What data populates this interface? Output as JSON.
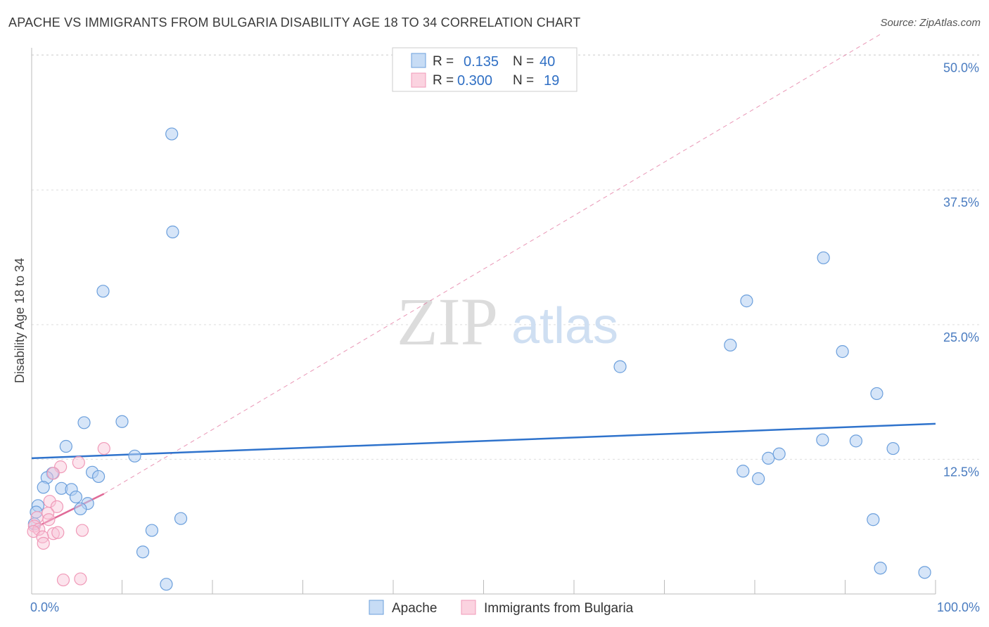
{
  "title": "APACHE VS IMMIGRANTS FROM BULGARIA DISABILITY AGE 18 TO 34 CORRELATION CHART",
  "source": "Source: ZipAtlas.com",
  "watermark": {
    "zip": "ZIP",
    "atlas": "atlas"
  },
  "colors": {
    "apache": "#6b9fdc",
    "bulgaria": "#f09ab8",
    "apache_line": "#2f73cc",
    "bulgaria_line": "#e06a97",
    "tick": "#4a7cc0"
  },
  "chart_data": {
    "type": "scatter",
    "title": "APACHE VS IMMIGRANTS FROM BULGARIA DISABILITY AGE 18 TO 34 CORRELATION CHART",
    "xlabel": "",
    "ylabel": "Disability Age 18 to 34",
    "xlim": [
      0,
      100
    ],
    "ylim": [
      0,
      52
    ],
    "y_ticks": [
      "12.5%",
      "25.0%",
      "37.5%",
      "50.0%"
    ],
    "y_tick_values": [
      12.5,
      25,
      37.5,
      50
    ],
    "x_tick_labels": [
      "0.0%",
      "100.0%"
    ],
    "x_tick_label_values": [
      0,
      100
    ],
    "grid": true,
    "legend_position": "top-center",
    "legend": [
      {
        "r_label": "R =",
        "r_value": "0.135",
        "n_label": "N =",
        "n_value": "40"
      },
      {
        "r_label": "R =",
        "r_value": "0.300",
        "n_label": "N =",
        "n_value": "19"
      }
    ],
    "series": [
      {
        "name": "Apache",
        "points": [
          [
            15.5,
            42.7
          ],
          [
            15.6,
            33.6
          ],
          [
            7.9,
            28.1
          ],
          [
            10.0,
            16.0
          ],
          [
            5.8,
            15.9
          ],
          [
            3.8,
            13.7
          ],
          [
            11.4,
            12.8
          ],
          [
            6.7,
            11.3
          ],
          [
            7.4,
            10.9
          ],
          [
            2.3,
            11.2
          ],
          [
            1.7,
            10.8
          ],
          [
            1.3,
            9.9
          ],
          [
            3.3,
            9.8
          ],
          [
            4.4,
            9.7
          ],
          [
            4.9,
            9.0
          ],
          [
            6.2,
            8.4
          ],
          [
            5.4,
            7.9
          ],
          [
            0.7,
            8.2
          ],
          [
            0.5,
            7.6
          ],
          [
            16.5,
            7.0
          ],
          [
            13.3,
            5.9
          ],
          [
            12.3,
            3.9
          ],
          [
            14.9,
            0.9
          ],
          [
            65.1,
            21.1
          ],
          [
            77.3,
            23.1
          ],
          [
            79.1,
            27.2
          ],
          [
            87.6,
            31.2
          ],
          [
            89.7,
            22.5
          ],
          [
            93.5,
            18.6
          ],
          [
            87.5,
            14.3
          ],
          [
            91.2,
            14.2
          ],
          [
            95.3,
            13.5
          ],
          [
            78.7,
            11.4
          ],
          [
            80.4,
            10.7
          ],
          [
            81.5,
            12.6
          ],
          [
            82.7,
            13.0
          ],
          [
            93.1,
            6.9
          ],
          [
            93.9,
            2.4
          ],
          [
            98.8,
            2.0
          ],
          [
            0.3,
            6.5
          ]
        ]
      },
      {
        "name": "Immigrants from Bulgaria",
        "points": [
          [
            8.0,
            13.5
          ],
          [
            5.2,
            12.2
          ],
          [
            3.2,
            11.8
          ],
          [
            2.4,
            11.2
          ],
          [
            2.0,
            8.6
          ],
          [
            2.8,
            8.1
          ],
          [
            1.8,
            7.5
          ],
          [
            0.6,
            7.1
          ],
          [
            1.9,
            6.9
          ],
          [
            0.3,
            6.3
          ],
          [
            0.8,
            6.0
          ],
          [
            0.2,
            5.8
          ],
          [
            2.4,
            5.6
          ],
          [
            5.6,
            5.9
          ],
          [
            2.9,
            5.7
          ],
          [
            1.2,
            5.3
          ],
          [
            1.3,
            4.7
          ],
          [
            3.5,
            1.3
          ],
          [
            5.4,
            1.4
          ]
        ]
      }
    ],
    "trend_lines": [
      {
        "series": "Apache",
        "x": [
          0,
          100
        ],
        "y": [
          12.6,
          15.8
        ]
      },
      {
        "series": "Immigrants from Bulgaria",
        "x": [
          0,
          8.0
        ],
        "y": [
          6.0,
          9.3
        ]
      },
      {
        "series": "Immigrants from Bulgaria (extended)",
        "x": [
          8.0,
          94
        ],
        "y": [
          9.3,
          52
        ]
      }
    ]
  }
}
